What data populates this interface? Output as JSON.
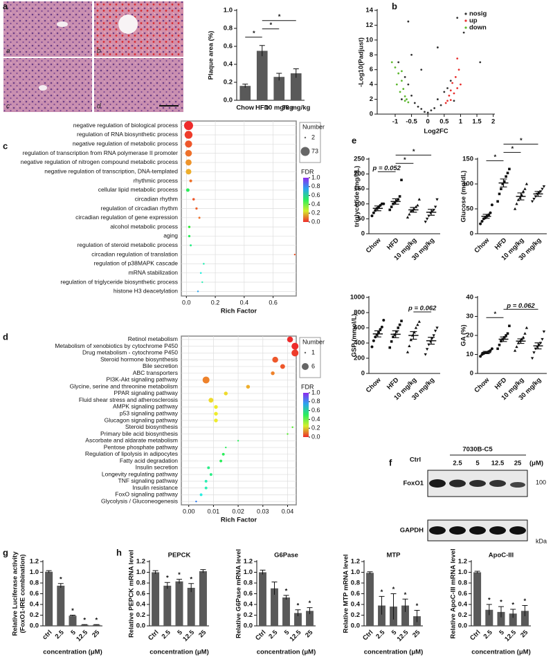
{
  "images": {
    "labels": [
      "a",
      "b",
      "c",
      "d"
    ]
  },
  "blot": {
    "panel": "f",
    "group": "7030B-C5",
    "lanes": [
      "Ctrl",
      "2.5",
      "5",
      "12.5",
      "25"
    ],
    "unit": "(μM)",
    "rows": [
      "FoxO1",
      "GAPDH"
    ],
    "marker": "100",
    "marker_unit": "kDa"
  },
  "chart_data": [
    {
      "type": "bar",
      "panel": "a",
      "ylabel": "Plaque area (%)",
      "categories": [
        "Chow",
        "HFD",
        "10 mg/kg",
        "30 mg/kg"
      ],
      "values": [
        0.16,
        0.55,
        0.26,
        0.3
      ],
      "errors": [
        0.02,
        0.06,
        0.04,
        0.05
      ],
      "color": "#595959",
      "ylim": [
        0,
        1
      ],
      "yticks": [
        {
          "value": 0,
          "label": "0.0"
        },
        0.2,
        0.4,
        0.6,
        0.8,
        {
          "value": 1,
          "label": "1.0"
        }
      ],
      "annotations": [
        {
          "text": "*",
          "from": 0,
          "to": 1
        },
        {
          "text": "*",
          "from": 1,
          "to": 2
        },
        {
          "text": "*",
          "from": 1,
          "to": 3
        }
      ]
    },
    {
      "type": "scatter",
      "panel": "b",
      "xlabel": "Log2FC",
      "ylabel": "-Log10(Padjust)",
      "xlim": [
        -1.55,
        2.05
      ],
      "ylim": [
        0,
        14
      ],
      "xticks": [
        -1,
        -0.5,
        0,
        0.5,
        1,
        1.5,
        2
      ],
      "yticks": [
        0,
        2,
        4,
        6,
        8,
        10,
        12,
        14
      ],
      "legend": "top-right",
      "series": [
        {
          "name": "nosig",
          "color": "#333333",
          "x": [
            -0.3,
            0.2,
            -0.1,
            0.3,
            -0.5,
            0.5,
            -0.6,
            0.6,
            -0.4,
            0.1,
            -0.2,
            0.4,
            -0.7,
            0.7,
            -0.5,
            0.3,
            -0.2,
            0.9,
            -0.6,
            1.6,
            1.1,
            -0.8,
            0.8,
            0,
            -0.9
          ],
          "values": [
            1,
            0.8,
            0.3,
            2,
            2.5,
            3,
            4,
            3.5,
            1.5,
            0.5,
            0.7,
            1.2,
            5,
            4.5,
            8,
            9,
            6,
            13,
            12.5,
            7,
            11,
            2,
            1.8,
            0.2,
            7
          ]
        },
        {
          "name": "up",
          "color": "#e8312f",
          "x": [
            0.55,
            0.65,
            0.7,
            0.75,
            0.85,
            0.9,
            0.6,
            0.95,
            0.8,
            1.0,
            0.7,
            0.9
          ],
          "values": [
            1.5,
            2.5,
            3.2,
            4.2,
            5,
            3.5,
            1.8,
            6,
            2.8,
            4,
            1.9,
            7.5
          ]
        },
        {
          "name": "down",
          "color": "#5cb82e",
          "x": [
            -0.6,
            -0.7,
            -0.75,
            -0.8,
            -0.9,
            -1.0,
            -0.85,
            -0.65,
            -1.1,
            -0.95,
            -0.7,
            -0.8
          ],
          "values": [
            1.6,
            2.4,
            3.4,
            4.5,
            5.5,
            6.3,
            3,
            2,
            7,
            4,
            1.8,
            5.8
          ]
        }
      ]
    },
    {
      "type": "bubble",
      "panel": "c",
      "xlabel": "Rich Factor",
      "grid": true,
      "categories": [
        "negative regulation of biological process",
        "regulation of RNA biosynthetic process",
        "negative regulation of metabolic process",
        "regulation of transcription from RNA polymerase II promoter",
        "negative regulation of nitrogen compound metabolic process",
        "negative regulation of transcription, DNA-templated",
        "rhythmic process",
        "cellular lipid metabolic process",
        "circadian rhythm",
        "regulation of circadian rhythm",
        "circadian regulation of gene expression",
        "alcohol metabolic process",
        "aging",
        "regulation of steroid metabolic process",
        "circadian regulation of translation",
        "regulation of p38MAPK cascade",
        "mRNA stabilization",
        "regulation of triglyceride biosynthetic process",
        "histone H3 deacetylation"
      ],
      "values": [
        0.015,
        0.015,
        0.015,
        0.015,
        0.015,
        0.015,
        0.03,
        0.01,
        0.05,
        0.07,
        0.09,
        0.02,
        0.02,
        0.03,
        0.75,
        0.12,
        0.1,
        0.11,
        0.08
      ],
      "sizes": [
        73,
        62,
        55,
        50,
        45,
        40,
        14,
        20,
        10,
        8,
        6,
        8,
        8,
        6,
        2,
        3,
        3,
        2,
        2
      ],
      "fdr": [
        0.0,
        0.02,
        0.05,
        0.08,
        0.12,
        0.15,
        0.08,
        0.5,
        0.05,
        0.06,
        0.08,
        0.45,
        0.5,
        0.55,
        0.05,
        0.6,
        0.65,
        0.6,
        0.75
      ],
      "xlim": [
        -0.035,
        0.76
      ],
      "xticks": [
        {
          "value": 0,
          "label": "0.0"
        },
        0.2,
        0.4,
        0.6
      ],
      "size_title": "Number",
      "size_legend": [
        2,
        73
      ],
      "color_title": "FDR",
      "color_ticks": [
        {
          "value": 0,
          "label": "0.0"
        },
        0.2,
        0.4,
        0.6,
        0.8,
        {
          "value": 1,
          "label": "1.0"
        }
      ]
    },
    {
      "type": "bubble",
      "panel": "d",
      "xlabel": "Rich Factor",
      "grid": true,
      "categories": [
        "Retinol metabolism",
        "Metabolism of xenobiotics by cytochrome P450",
        "Drug metabolism - cytochrome P450",
        "Steroid hormone biosynthesis",
        "Bile secretion",
        "ABC transporters",
        "PI3K-Akt signaling pathway",
        "Glycine, serine and threonine metabolism",
        "PPAR signaling pathway",
        "Fluid shear stress and atherosclerosis",
        "AMPK signaling pathway",
        "p53 signaling pathway",
        "Glucagon signaling pathway",
        "Steroid biosynthesis",
        "Primary bile acid biosynthesis",
        "Ascorbate and aldarate metabolism",
        "Pentose phosphate pathway",
        "Regulation of lipolysis in adipocytes",
        "Fatty acid degradation",
        "Insulin secretion",
        "Longevity regulating pathway",
        "TNF signaling pathway",
        "Insulin resistance",
        "FoxO signaling pathway",
        "Glycolysis / Gluconeogenesis"
      ],
      "values": [
        0.041,
        0.043,
        0.043,
        0.035,
        0.038,
        0.034,
        0.007,
        0.024,
        0.015,
        0.009,
        0.011,
        0.011,
        0.011,
        0.042,
        0.04,
        0.02,
        0.015,
        0.014,
        0.013,
        0.008,
        0.009,
        0.007,
        0.007,
        0.005,
        0.003
      ],
      "sizes": [
        5,
        6,
        6,
        5,
        4,
        3,
        6,
        3,
        3,
        4,
        3,
        3,
        3,
        1,
        1,
        1,
        1,
        2,
        2,
        2,
        2,
        2,
        2,
        2,
        1
      ],
      "fdr": [
        0.0,
        0.0,
        0.02,
        0.05,
        0.05,
        0.1,
        0.1,
        0.15,
        0.2,
        0.2,
        0.22,
        0.22,
        0.22,
        0.4,
        0.4,
        0.5,
        0.5,
        0.5,
        0.5,
        0.55,
        0.55,
        0.6,
        0.6,
        0.65,
        0.8
      ],
      "xlim": [
        -0.003,
        0.0435
      ],
      "xticks": [
        {
          "value": 0,
          "label": "0.00"
        },
        0.01,
        0.02,
        0.03,
        0.04
      ],
      "size_title": "Number",
      "size_legend": [
        1,
        6
      ],
      "color_title": "FDR",
      "color_ticks": [
        {
          "value": 0,
          "label": "0.0"
        },
        0.2,
        0.4,
        0.6,
        0.8,
        {
          "value": 1,
          "label": "1.0"
        }
      ]
    },
    {
      "type": "strip",
      "panel": "e",
      "ylabel": "triglyceride (mg/dL)",
      "categories": [
        "Chow",
        "HFD",
        "10 mg/kg",
        "30 mg/kg"
      ],
      "points": [
        [
          60,
          70,
          78,
          85,
          90,
          95,
          100,
          100
        ],
        [
          80,
          90,
          100,
          105,
          110,
          115,
          125,
          180
        ],
        [
          55,
          65,
          75,
          78,
          82,
          90,
          95,
          115
        ],
        [
          40,
          50,
          60,
          70,
          75,
          80,
          90,
          115
        ]
      ],
      "values": [
        85,
        108,
        80,
        72
      ],
      "errors": [
        8,
        9,
        8,
        10
      ],
      "ylim": [
        0,
        250
      ],
      "yticks": [
        0,
        50,
        100,
        150,
        200,
        250
      ],
      "annotations": [
        {
          "text": "p = 0.052",
          "from": 0,
          "to": 1
        },
        {
          "text": "*",
          "from": 1,
          "to": 2
        },
        {
          "text": "*",
          "from": 1,
          "to": 3
        }
      ]
    },
    {
      "type": "strip",
      "ylabel": "Glucose (mg/dL)",
      "categories": [
        "Chow",
        "HFD",
        "10 mg/kg",
        "30 mg/kg"
      ],
      "points": [
        [
          20,
          25,
          30,
          32,
          35,
          38,
          42,
          58
        ],
        [
          65,
          80,
          90,
          100,
          105,
          115,
          122,
          130
        ],
        [
          50,
          60,
          68,
          72,
          78,
          85,
          90,
          100
        ],
        [
          65,
          70,
          75,
          80,
          82,
          85,
          90,
          95
        ]
      ],
      "values": [
        35,
        102,
        75,
        80
      ],
      "errors": [
        4,
        8,
        7,
        5
      ],
      "ylim": [
        0,
        150
      ],
      "yticks": [
        0,
        50,
        100,
        150
      ],
      "annotations": [
        {
          "text": "*",
          "from": 0,
          "to": 1
        },
        {
          "text": "*",
          "from": 1,
          "to": 2
        },
        {
          "text": "*",
          "from": 1,
          "to": 3
        }
      ]
    },
    {
      "type": "strip",
      "ylabel": "GSP (mmol/L)",
      "categories": [
        "Chow",
        "HFD",
        "10 mg/kg",
        "30 mg/kg"
      ],
      "points": [
        [
          350,
          430,
          480,
          510,
          540,
          580,
          610,
          700
        ],
        [
          340,
          420,
          480,
          510,
          550,
          600,
          640,
          690
        ],
        [
          280,
          360,
          440,
          500,
          540,
          600,
          640,
          680
        ],
        [
          250,
          320,
          380,
          420,
          460,
          500,
          560,
          600
        ]
      ],
      "values": [
        520,
        515,
        500,
        430
      ],
      "errors": [
        40,
        45,
        50,
        45
      ],
      "ylim": [
        0,
        1000
      ],
      "yticks": [
        0,
        200,
        400,
        600,
        800,
        1000
      ],
      "annotations": [
        {
          "text": "p = 0.062",
          "from": 2,
          "to": 3
        }
      ]
    },
    {
      "type": "strip",
      "ylabel": "GA (%)",
      "categories": [
        "Chow",
        "HFD",
        "10 mg/kg",
        "30 mg/kg"
      ],
      "points": [
        [
          9,
          10,
          10.5,
          11,
          11,
          11.5,
          12,
          13
        ],
        [
          13,
          15,
          17,
          18,
          19,
          20,
          21,
          25
        ],
        [
          12,
          14,
          16,
          17,
          18,
          19,
          21,
          24
        ],
        [
          8,
          11,
          13,
          14,
          15,
          16,
          18,
          22
        ]
      ],
      "values": [
        11,
        18,
        17,
        14.5
      ],
      "errors": [
        0.6,
        1.2,
        1.2,
        1.6
      ],
      "ylim": [
        0,
        40
      ],
      "yticks": [
        0,
        10,
        20,
        30,
        40
      ],
      "annotations": [
        {
          "text": "*",
          "from": 0,
          "to": 1
        },
        {
          "text": "p = 0.062",
          "from": 1,
          "to": 3
        }
      ]
    },
    {
      "type": "bar",
      "panel": "g",
      "ylabel": [
        "Relative Luciferase activity",
        "(FoxO1-IRE combination)"
      ],
      "xlabel": "concentration (μM)",
      "categories": [
        "ctrl",
        "2.5",
        "5",
        "12.5",
        "25"
      ],
      "values": [
        1.01,
        0.75,
        0.19,
        0.02,
        0.02
      ],
      "errors": [
        0.02,
        0.04,
        0.01,
        0.005,
        0.005
      ],
      "color": "#595959",
      "ylim": [
        0,
        1.2
      ],
      "yticks": [
        {
          "value": 0,
          "label": "0.0"
        },
        0.2,
        0.4,
        0.6,
        0.8,
        {
          "value": 1,
          "label": "1.0"
        },
        1.2
      ],
      "annotations": [
        {
          "text": "*",
          "at": 1
        },
        {
          "text": "*",
          "at": 2
        },
        {
          "text": "*",
          "at": 3
        },
        {
          "text": "*",
          "at": 4
        }
      ]
    },
    {
      "type": "bar",
      "panel": "h",
      "title": "PEPCK",
      "ylabel": "Relative PEPCK mRNA level",
      "xlabel": "concentration (μM)",
      "categories": [
        "Ctrl",
        "2.5",
        "5",
        "12.5",
        "25"
      ],
      "values": [
        1.0,
        0.75,
        0.83,
        0.71,
        1.02
      ],
      "errors": [
        0.03,
        0.06,
        0.04,
        0.08,
        0.03
      ],
      "color": "#595959",
      "ylim": [
        0,
        1.2
      ],
      "yticks": [
        {
          "value": 0,
          "label": "0.0"
        },
        0.2,
        0.4,
        0.6,
        0.8,
        {
          "value": 1,
          "label": "1.0"
        },
        1.2
      ],
      "annotations": [
        {
          "text": "*",
          "at": 1
        },
        {
          "text": "*",
          "at": 2
        },
        {
          "text": "*",
          "at": 3
        }
      ]
    },
    {
      "type": "bar",
      "title": "G6Pase",
      "ylabel": "Relative G6Pase mRNA level",
      "xlabel": "concentration (μM)",
      "categories": [
        "Ctrl",
        "2.5",
        "5",
        "12.5",
        "25"
      ],
      "values": [
        1.0,
        0.7,
        0.53,
        0.24,
        0.28
      ],
      "errors": [
        0.04,
        0.12,
        0.04,
        0.06,
        0.06
      ],
      "color": "#595959",
      "ylim": [
        0,
        1.2
      ],
      "yticks": [
        {
          "value": 0,
          "label": "0.0"
        },
        0.2,
        0.4,
        0.6,
        0.8,
        {
          "value": 1,
          "label": "1.0"
        },
        1.2
      ],
      "annotations": [
        {
          "text": "*",
          "at": 2
        },
        {
          "text": "*",
          "at": 3
        },
        {
          "text": "*",
          "at": 4
        }
      ]
    },
    {
      "type": "bar",
      "title": "MTP",
      "ylabel": "Relative MTP mRNA level",
      "xlabel": "concentration (μM)",
      "categories": [
        "Ctrl",
        "2.5",
        "5",
        "12.5",
        "25"
      ],
      "values": [
        0.99,
        0.38,
        0.36,
        0.38,
        0.18
      ],
      "errors": [
        0.02,
        0.17,
        0.24,
        0.12,
        0.11
      ],
      "color": "#595959",
      "ylim": [
        0,
        1.2
      ],
      "yticks": [
        {
          "value": 0,
          "label": "0.0"
        },
        0.2,
        0.4,
        0.6,
        0.8,
        {
          "value": 1,
          "label": "1.0"
        },
        1.2
      ],
      "annotations": [
        {
          "text": "*",
          "at": 1
        },
        {
          "text": "*",
          "at": 2
        },
        {
          "text": "*",
          "at": 3
        },
        {
          "text": "*",
          "at": 4
        }
      ]
    },
    {
      "type": "bar",
      "title": "ApoC-III",
      "ylabel": "Relative ApoC-III mRNA level",
      "xlabel": "concentration (μM)",
      "categories": [
        "Ctrl",
        "2.5",
        "5",
        "12.5",
        "25"
      ],
      "values": [
        1.0,
        0.3,
        0.26,
        0.23,
        0.28
      ],
      "errors": [
        0.02,
        0.1,
        0.1,
        0.08,
        0.1
      ],
      "color": "#595959",
      "ylim": [
        0,
        1.2
      ],
      "yticks": [
        {
          "value": 0,
          "label": "0.0"
        },
        0.2,
        0.4,
        0.6,
        0.8,
        {
          "value": 1,
          "label": "1.0"
        },
        1.2
      ],
      "annotations": [
        {
          "text": "*",
          "at": 1
        },
        {
          "text": "*",
          "at": 2
        },
        {
          "text": "*",
          "at": 3
        },
        {
          "text": "*",
          "at": 4
        }
      ]
    }
  ]
}
